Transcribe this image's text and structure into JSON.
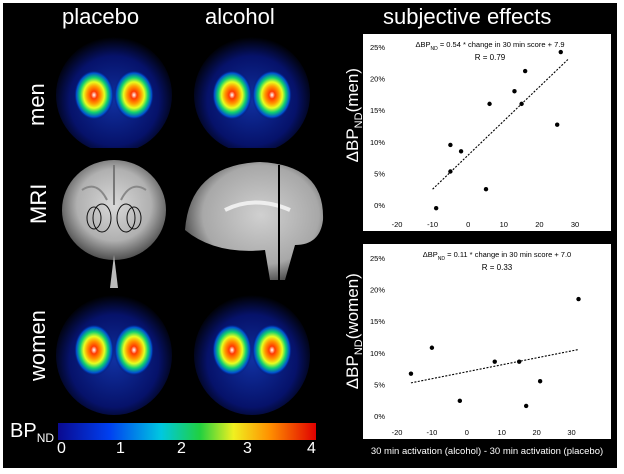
{
  "headers": {
    "placebo": "placebo",
    "alcohol": "alcohol",
    "subjective": "subjective effects"
  },
  "row_labels": {
    "men": "men",
    "mri": "MRI",
    "women": "women"
  },
  "colorbar": {
    "label_main": "BP",
    "label_sub": "ND",
    "ticks": [
      "0",
      "1",
      "2",
      "3",
      "4"
    ]
  },
  "x_axis_label": "30 min activation (alcohol) - 30 min activation (placebo)",
  "chart_data": [
    {
      "type": "scatter",
      "equation_pre": "ΔBP",
      "equation_sub": "ND",
      "equation_post": " = 0.54 * change in 30 min score + 7.9",
      "r_text": "R = 0.79",
      "ylabel_pre": "ΔBP",
      "ylabel_sub": "ND",
      "ylabel_post": "(men)",
      "xlim": [
        -20,
        30
      ],
      "ylim": [
        0,
        25
      ],
      "xticks": [
        "-20",
        "-10",
        "0",
        "10",
        "20",
        "30"
      ],
      "yticks": [
        "0%",
        "5%",
        "10%",
        "15%",
        "20%",
        "25%"
      ],
      "points": [
        {
          "x": -9,
          "y": -0.5
        },
        {
          "x": -5,
          "y": 5.3
        },
        {
          "x": -5,
          "y": 9.5
        },
        {
          "x": -2,
          "y": 8.5
        },
        {
          "x": 5,
          "y": 2.5
        },
        {
          "x": 6,
          "y": 16
        },
        {
          "x": 13,
          "y": 18
        },
        {
          "x": 15,
          "y": 16
        },
        {
          "x": 16,
          "y": 21.2
        },
        {
          "x": 25,
          "y": 12.7
        },
        {
          "x": 26,
          "y": 24.2
        }
      ],
      "fit": {
        "slope": 0.54,
        "intercept": 7.9,
        "x_from": -10,
        "x_to": 28
      }
    },
    {
      "type": "scatter",
      "equation_pre": "ΔBP",
      "equation_sub": "ND",
      "equation_post": " = 0.11 * change in 30 min score + 7.0",
      "r_text": "R = 0.33",
      "ylabel_pre": "ΔBP",
      "ylabel_sub": "ND",
      "ylabel_post": "(women)",
      "xlim": [
        -20,
        35
      ],
      "ylim": [
        0,
        25
      ],
      "xticks": [
        "-20",
        "-10",
        "0",
        "10",
        "20",
        "30"
      ],
      "yticks": [
        "0%",
        "5%",
        "10%",
        "15%",
        "20%",
        "25%"
      ],
      "points": [
        {
          "x": -16,
          "y": 6.7
        },
        {
          "x": -10,
          "y": 10.8
        },
        {
          "x": -2,
          "y": 2.4
        },
        {
          "x": 8,
          "y": 8.6
        },
        {
          "x": 15,
          "y": 8.6
        },
        {
          "x": 17,
          "y": 1.6
        },
        {
          "x": 21,
          "y": 5.5
        },
        {
          "x": 32,
          "y": 18.5
        }
      ],
      "fit": {
        "slope": 0.11,
        "intercept": 7.0,
        "x_from": -16,
        "x_to": 32
      }
    }
  ]
}
